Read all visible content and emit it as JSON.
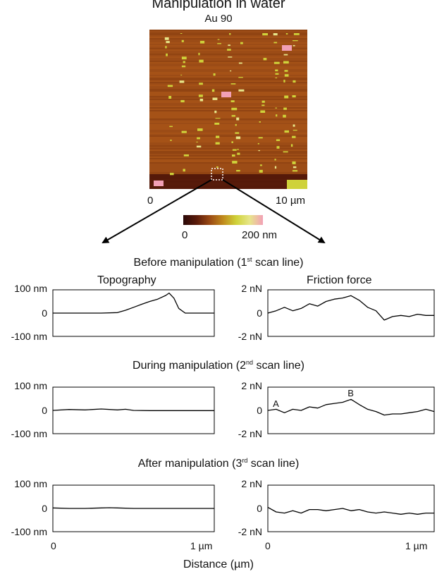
{
  "title": "Manipulation in water",
  "image": {
    "label": "Au 90",
    "x_axis": {
      "min_label": "0",
      "max_label": "10 µm"
    },
    "colorbar": {
      "min_label": "0",
      "max_label": "200 nm",
      "colors": [
        "#2a0808",
        "#5a1a0a",
        "#9a4a14",
        "#c08a1c",
        "#cfd23a",
        "#e7e68a",
        "#f2a0b6"
      ]
    }
  },
  "sections": {
    "before": {
      "title_pre": "Before manipulation (1",
      "sup": "st",
      "title_post": " scan line)"
    },
    "during": {
      "title_pre": "During manipulation (2",
      "sup": "nd",
      "title_post": " scan line)"
    },
    "after": {
      "title_pre": "After manipulation (3",
      "sup": "rd",
      "title_post": " scan line)"
    }
  },
  "columns": {
    "left": "Topography",
    "right": "Friction force"
  },
  "x_axis": {
    "label": "Distance (µm)",
    "min_label": "0",
    "max_label": "1 µm"
  },
  "chart_data": [
    {
      "type": "line",
      "panel": "before-topography",
      "ylabel": "",
      "yticks": [
        "100 nm",
        "0",
        "-100 nm"
      ],
      "ylim": [
        -100,
        100
      ],
      "xlim": [
        0,
        1
      ],
      "x": [
        0,
        0.1,
        0.2,
        0.3,
        0.4,
        0.45,
        0.5,
        0.55,
        0.6,
        0.65,
        0.7,
        0.72,
        0.75,
        0.78,
        0.82,
        0.9,
        1.0
      ],
      "values": [
        0,
        0,
        0,
        0,
        2,
        12,
        25,
        38,
        50,
        60,
        76,
        86,
        64,
        20,
        0,
        0,
        0
      ]
    },
    {
      "type": "line",
      "panel": "before-friction",
      "yticks": [
        "2 nN",
        "0",
        "-2 nN"
      ],
      "ylim": [
        -2,
        2
      ],
      "xlim": [
        0,
        1
      ],
      "x": [
        0,
        0.05,
        0.1,
        0.15,
        0.2,
        0.25,
        0.3,
        0.35,
        0.4,
        0.45,
        0.5,
        0.55,
        0.6,
        0.65,
        0.7,
        0.75,
        0.8,
        0.85,
        0.9,
        0.95,
        1.0
      ],
      "values": [
        0,
        0.2,
        0.5,
        0.2,
        0.4,
        0.8,
        0.6,
        1.0,
        1.2,
        1.3,
        1.5,
        1.1,
        0.5,
        0.2,
        -0.6,
        -0.3,
        -0.2,
        -0.3,
        -0.1,
        -0.2,
        -0.2
      ]
    },
    {
      "type": "line",
      "panel": "during-topography",
      "yticks": [
        "100 nm",
        "0",
        "-100 nm"
      ],
      "ylim": [
        -100,
        100
      ],
      "xlim": [
        0,
        1
      ],
      "x": [
        0,
        0.1,
        0.2,
        0.3,
        0.4,
        0.45,
        0.5,
        0.6,
        0.7,
        0.8,
        0.9,
        1.0
      ],
      "values": [
        0,
        4,
        2,
        6,
        2,
        5,
        0,
        -1,
        -1,
        -1,
        -1,
        -1
      ]
    },
    {
      "type": "line",
      "panel": "during-friction",
      "yticks": [
        "2 nN",
        "0",
        "-2 nN"
      ],
      "ylim": [
        -2,
        2
      ],
      "xlim": [
        0,
        1
      ],
      "x": [
        0,
        0.05,
        0.1,
        0.15,
        0.2,
        0.25,
        0.3,
        0.35,
        0.4,
        0.45,
        0.5,
        0.55,
        0.6,
        0.65,
        0.7,
        0.75,
        0.8,
        0.85,
        0.9,
        0.95,
        1.0
      ],
      "values": [
        0,
        0.1,
        -0.2,
        0.1,
        0.0,
        0.3,
        0.2,
        0.5,
        0.6,
        0.7,
        0.95,
        0.5,
        0.1,
        -0.1,
        -0.4,
        -0.3,
        -0.3,
        -0.2,
        -0.1,
        0.1,
        -0.1
      ],
      "annotations": [
        {
          "text": "A",
          "x": 0.03,
          "y": 0.3
        },
        {
          "text": "B",
          "x": 0.48,
          "y": 1.2
        }
      ]
    },
    {
      "type": "line",
      "panel": "after-topography",
      "yticks": [
        "100 nm",
        "0",
        "-100 nm"
      ],
      "ylim": [
        -100,
        100
      ],
      "xlim": [
        0,
        1
      ],
      "x": [
        0,
        0.1,
        0.2,
        0.3,
        0.35,
        0.4,
        0.5,
        0.6,
        0.7,
        0.8,
        0.9,
        1.0
      ],
      "values": [
        2,
        0,
        0,
        2,
        3,
        2,
        0,
        0,
        0,
        0,
        0,
        0
      ]
    },
    {
      "type": "line",
      "panel": "after-friction",
      "yticks": [
        "2 nN",
        "0",
        "-2 nN"
      ],
      "ylim": [
        -2,
        2
      ],
      "xlim": [
        0,
        1
      ],
      "x": [
        0,
        0.05,
        0.1,
        0.15,
        0.2,
        0.25,
        0.3,
        0.35,
        0.4,
        0.45,
        0.5,
        0.55,
        0.6,
        0.65,
        0.7,
        0.75,
        0.8,
        0.85,
        0.9,
        0.95,
        1.0
      ],
      "values": [
        0.1,
        -0.3,
        -0.4,
        -0.2,
        -0.4,
        -0.1,
        -0.1,
        -0.2,
        -0.1,
        0.0,
        -0.2,
        -0.1,
        -0.3,
        -0.4,
        -0.3,
        -0.4,
        -0.5,
        -0.4,
        -0.5,
        -0.4,
        -0.4
      ]
    }
  ]
}
